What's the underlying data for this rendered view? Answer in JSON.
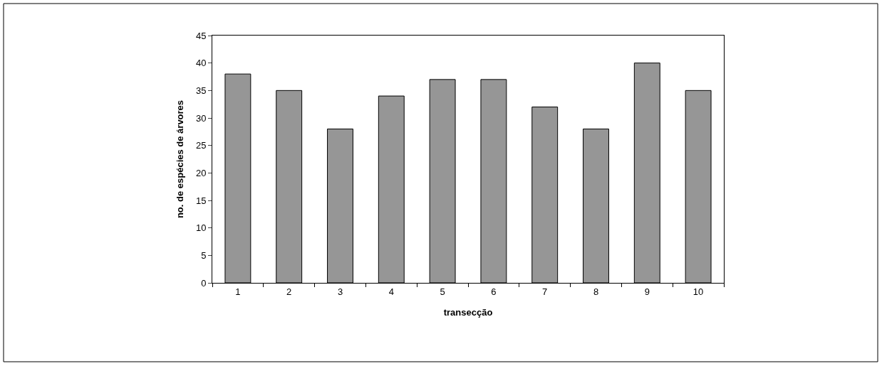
{
  "chart_data": {
    "type": "bar",
    "xlabel": "transecção",
    "ylabel": "no. de espécies de árvores",
    "categories": [
      "1",
      "2",
      "3",
      "4",
      "5",
      "6",
      "7",
      "8",
      "9",
      "10"
    ],
    "values": [
      38,
      35,
      28,
      34,
      37,
      37,
      32,
      28,
      40,
      35
    ],
    "color": "#969696",
    "ylim": [
      0,
      45
    ],
    "yticks": [
      0,
      5,
      10,
      15,
      20,
      25,
      30,
      35,
      40,
      45
    ]
  }
}
